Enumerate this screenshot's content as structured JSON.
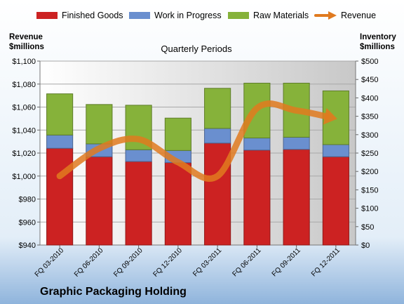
{
  "chart_data": {
    "type": "bar",
    "stacked": true,
    "title": "Quarterly Periods",
    "footer_title": "Graphic Packaging Holding",
    "y_left_label": [
      "Revenue",
      "$millions"
    ],
    "y_right_label": [
      "Inventory",
      "$millions"
    ],
    "categories": [
      "FQ 03-2010",
      "FQ 06-2010",
      "FQ 09-2010",
      "FQ 12-2010",
      "FQ 03-2011",
      "FQ 06-2011",
      "FQ 09-2011",
      "FQ 12-2011"
    ],
    "left_axis": {
      "min": 940,
      "max": 1100,
      "step": 20,
      "tick_labels": [
        "$940",
        "$960",
        "$980",
        "$1,000",
        "$1,020",
        "$1,040",
        "$1,060",
        "$1,080",
        "$1,100"
      ]
    },
    "right_axis": {
      "min": 0,
      "max": 500,
      "step": 50,
      "tick_labels": [
        "$0",
        "$50",
        "$100",
        "$150",
        "$200",
        "$250",
        "$300",
        "$350",
        "$400",
        "$450",
        "$500"
      ]
    },
    "grid": true,
    "legend_position": "top",
    "series": [
      {
        "name": "Finished Goods",
        "axis": "right",
        "color": "#cc2222",
        "values": [
          263,
          240,
          227,
          224,
          277,
          258,
          260,
          240
        ]
      },
      {
        "name": "Work in Progress",
        "axis": "right",
        "color": "#6a8fcf",
        "values": [
          36,
          35,
          32,
          33,
          40,
          33,
          33,
          33
        ]
      },
      {
        "name": "Raw Materials",
        "axis": "right",
        "color": "#86b23a",
        "values": [
          112,
          107,
          121,
          88,
          109,
          149,
          147,
          146
        ]
      },
      {
        "name": "Revenue",
        "axis": "left",
        "type": "line",
        "color": "#e07a1f",
        "values": [
          1000,
          1024,
          1032,
          1012,
          1000,
          1059,
          1057,
          1050
        ]
      }
    ]
  }
}
